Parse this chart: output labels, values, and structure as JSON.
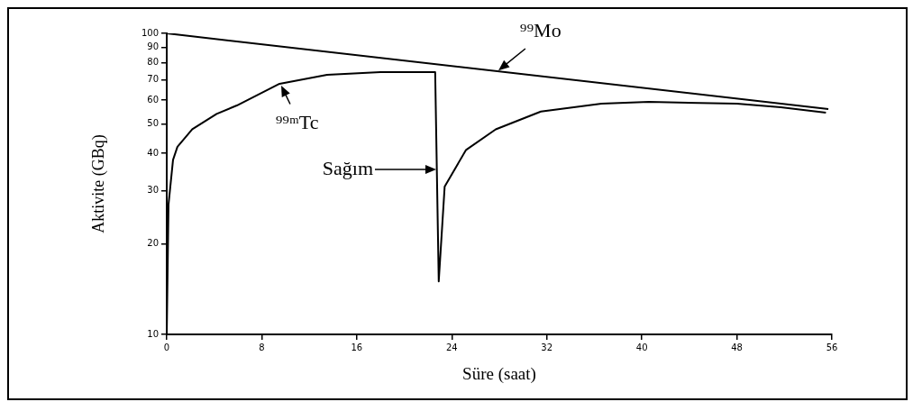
{
  "chart_data": {
    "type": "line",
    "xlabel": "Süre (saat)",
    "ylabel": "Aktivite (GBq)",
    "log": "y",
    "xlim": [
      0,
      56
    ],
    "xticks": [
      0,
      8,
      16,
      24,
      32,
      40,
      48,
      56
    ],
    "ylim": [
      10,
      100
    ],
    "yticks": [
      10,
      20,
      30,
      40,
      50,
      60,
      70,
      80,
      90,
      100
    ],
    "grid": false,
    "legend": false,
    "marker": "none",
    "line_style": "solid",
    "series": [
      {
        "color": "#000000",
        "x": [
          0,
          55.7
        ],
        "values": [
          100,
          56
        ]
      },
      {
        "color": "#000000",
        "x": [
          0,
          0.15,
          0.53,
          0.9,
          2.15,
          4.2,
          5.9,
          9.5,
          13.5,
          18,
          22.6,
          22.9,
          23.4,
          25.2,
          27.7,
          31.5,
          36.6,
          40.6,
          48,
          51.7,
          55.5
        ],
        "values": [
          10,
          27,
          38,
          42,
          48,
          54,
          57.6,
          68,
          72.8,
          74.3,
          74.3,
          15,
          31,
          41,
          48,
          55,
          58.4,
          59.2,
          58.4,
          56.8,
          54.5
        ]
      }
    ],
    "annotations": [
      {
        "text": "⁹⁹Mo",
        "x": 27.9,
        "y": 75.4
      },
      {
        "text": "⁹⁹ᵐTc",
        "x": 9.6,
        "y": 67
      },
      "Sağım"
    ]
  }
}
